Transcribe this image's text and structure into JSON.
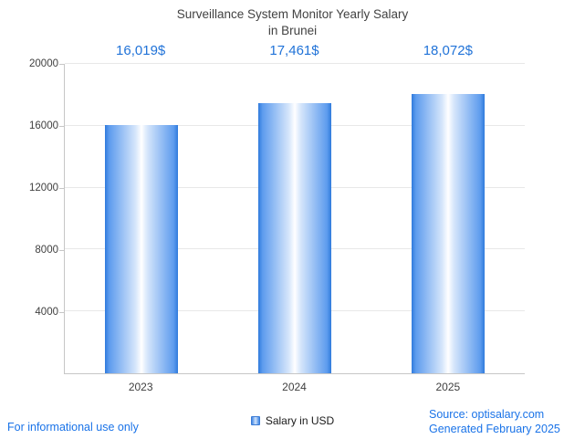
{
  "chart_data": {
    "type": "bar",
    "title": "Surveillance System Monitor Yearly Salary",
    "subtitle": "in Brunei",
    "categories": [
      "2023",
      "2024",
      "2025"
    ],
    "values": [
      16019,
      17461,
      18072
    ],
    "value_labels": [
      "16,019$",
      "17,461$",
      "18,072$"
    ],
    "series": [
      {
        "name": "Salary in USD",
        "values": [
          16019,
          17461,
          18072
        ]
      }
    ],
    "xlabel": "",
    "ylabel": "",
    "ylim": [
      0,
      20000
    ],
    "yticks": [
      4000,
      8000,
      12000,
      16000,
      20000
    ],
    "grid": true,
    "legend": [
      "Salary in USD"
    ],
    "legend_position": "bottom",
    "bar_color": "#2f7bdc",
    "label_color": "#2173d8"
  },
  "footer": {
    "disclaimer": "For informational use only",
    "source": "Source: optisalary.com",
    "generated": "Generated February 2025"
  }
}
